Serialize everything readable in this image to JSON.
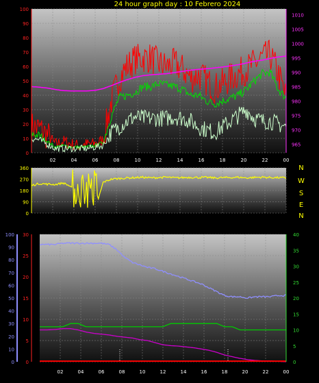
{
  "title": "24 hour graph day : 10 Febrero 2024",
  "colors": {
    "background": "#000000",
    "title": "#ffff00",
    "axis_red": "#ff2222",
    "axis_pink": "#ff33ff",
    "axis_yellow": "#ffff00",
    "axis_blue": "#8f8fff",
    "axis_green": "#33dd33",
    "time_labels": "#ffffff"
  },
  "compass": [
    "N",
    "W",
    "S",
    "E",
    "N"
  ],
  "chart_data": [
    {
      "id": "wind-pressure",
      "type": "line",
      "x_ticks": [
        "02",
        "04",
        "06",
        "08",
        "10",
        "12",
        "14",
        "16",
        "18",
        "20",
        "22",
        "00"
      ],
      "y_left_ticks": [
        "0",
        "10",
        "20",
        "30",
        "40",
        "50",
        "60",
        "70",
        "80",
        "90",
        "100"
      ],
      "y_right_ticks": [
        "965",
        "970",
        "975",
        "980",
        "985",
        "990",
        "995",
        "1000",
        "1005",
        "1010"
      ],
      "ylim_left": [
        0,
        100
      ],
      "ylim_right": [
        962,
        1012
      ],
      "grid": true,
      "series": [
        {
          "key": "gust",
          "color": "#ff0000",
          "axis": "left",
          "noise": 11,
          "values": [
            18,
            17,
            12,
            6,
            8,
            6,
            5,
            6,
            6,
            9,
            35,
            52,
            60,
            65,
            66,
            66,
            62,
            60,
            62,
            58,
            52,
            54,
            50,
            45,
            48,
            52,
            55,
            58,
            62,
            66,
            68,
            55,
            38
          ]
        },
        {
          "key": "average",
          "color": "#00dd00",
          "axis": "left",
          "noise": 3,
          "values": [
            13,
            12,
            8,
            4,
            5,
            4,
            4,
            4,
            5,
            7,
            25,
            38,
            40,
            42,
            46,
            46,
            48,
            47,
            46,
            44,
            40,
            40,
            36,
            34,
            36,
            38,
            40,
            44,
            50,
            55,
            56,
            44,
            38
          ]
        },
        {
          "key": "lull",
          "color": "#ccffcc",
          "axis": "left",
          "noise": 6,
          "values": [
            10,
            9,
            6,
            3,
            3,
            3,
            3,
            3,
            4,
            5,
            14,
            18,
            22,
            25,
            24,
            24,
            24,
            24,
            25,
            24,
            22,
            18,
            16,
            14,
            18,
            22,
            26,
            30,
            24,
            22,
            22,
            20,
            18
          ]
        },
        {
          "key": "pressure",
          "color": "#ff00ff",
          "axis": "right",
          "noise": 0,
          "values": [
            985.0,
            984.8,
            984.5,
            984.0,
            983.6,
            983.5,
            983.5,
            983.5,
            983.7,
            984.3,
            985.3,
            986.4,
            987.4,
            988.2,
            988.8,
            989.1,
            989.3,
            989.5,
            989.9,
            990.3,
            990.7,
            991.0,
            991.2,
            991.5,
            991.8,
            992.2,
            992.6,
            993.2,
            993.8,
            994.2,
            994.8,
            995.3,
            995.6
          ]
        }
      ]
    },
    {
      "id": "wind-direction",
      "type": "line",
      "y_ticks": [
        "0",
        "90",
        "180",
        "270",
        "360"
      ],
      "ylim": [
        0,
        360
      ],
      "grid": true,
      "series": [
        {
          "key": "direction",
          "color": "#ffff00",
          "noise": 8,
          "values": [
            220,
            235,
            230,
            228,
            240,
            210,
            60,
            80,
            20,
            245,
            270,
            275,
            280,
            282,
            285,
            280,
            283,
            286,
            280,
            282,
            285,
            283,
            284,
            280,
            282,
            283,
            285,
            280,
            284,
            286,
            283,
            282,
            280
          ]
        }
      ]
    },
    {
      "id": "temp-humidity",
      "type": "line",
      "x_ticks": [
        "02",
        "04",
        "06",
        "08",
        "10",
        "12",
        "14",
        "16",
        "18",
        "20",
        "22",
        "00"
      ],
      "y_blue_ticks": [
        "0",
        "10",
        "20",
        "30",
        "40",
        "50",
        "60",
        "70",
        "80",
        "90",
        "100"
      ],
      "y_red_ticks": [
        "0",
        "5",
        "10",
        "15",
        "20",
        "25",
        "30"
      ],
      "y_green_ticks": [
        "0",
        "5",
        "10",
        "15",
        "20",
        "25",
        "30",
        "35",
        "40"
      ],
      "ylim_blue": [
        0,
        100
      ],
      "ylim_red": [
        0,
        30
      ],
      "ylim_green": [
        0,
        40
      ],
      "grid": true,
      "series": [
        {
          "key": "humidity",
          "color": "#8f8fff",
          "axis": "blue",
          "values": [
            92,
            92,
            92,
            93,
            93,
            93,
            93,
            93,
            93,
            92,
            88,
            82,
            78,
            76,
            74,
            73,
            71,
            69,
            67,
            65,
            63,
            61,
            58,
            55,
            52,
            51,
            51,
            50,
            51,
            51,
            51,
            52,
            52
          ]
        },
        {
          "key": "temperature",
          "color": "#00cc00",
          "axis": "green",
          "values": [
            11,
            11,
            11,
            11,
            12,
            12,
            11,
            11,
            11,
            11,
            11,
            11,
            11,
            11,
            11,
            11,
            11,
            12,
            12,
            12,
            12,
            12,
            12,
            12,
            11,
            11,
            10,
            10,
            10,
            10,
            10,
            10,
            10
          ]
        },
        {
          "key": "dewpoint",
          "color": "#cc00cc",
          "axis": "red",
          "values": [
            7.5,
            7.5,
            7.6,
            7.8,
            7.8,
            7.5,
            7.0,
            6.7,
            6.5,
            6.3,
            6.0,
            5.8,
            5.6,
            5.2,
            5.0,
            4.5,
            4.0,
            3.8,
            3.7,
            3.5,
            3.3,
            3.0,
            2.7,
            2.2,
            1.6,
            1.2,
            0.8,
            0.5,
            0.3,
            0.2,
            0.2,
            0.1,
            0.0
          ]
        },
        {
          "key": "rain",
          "color": "#ff0000",
          "axis": "red",
          "values": [
            0.15,
            0.15,
            0.15,
            0.15,
            0.15,
            0.15,
            0.15,
            0.15,
            0.15,
            0.15,
            0.15,
            0.15,
            0.15,
            0.15,
            0.15,
            0.15,
            0.15,
            0.15,
            0.15,
            0.15,
            0.15,
            0.15,
            0.15,
            0.15,
            0.15,
            0.15,
            0.15,
            0.15,
            0.15,
            0.15,
            0.15,
            0.15,
            0.15
          ]
        }
      ]
    }
  ]
}
